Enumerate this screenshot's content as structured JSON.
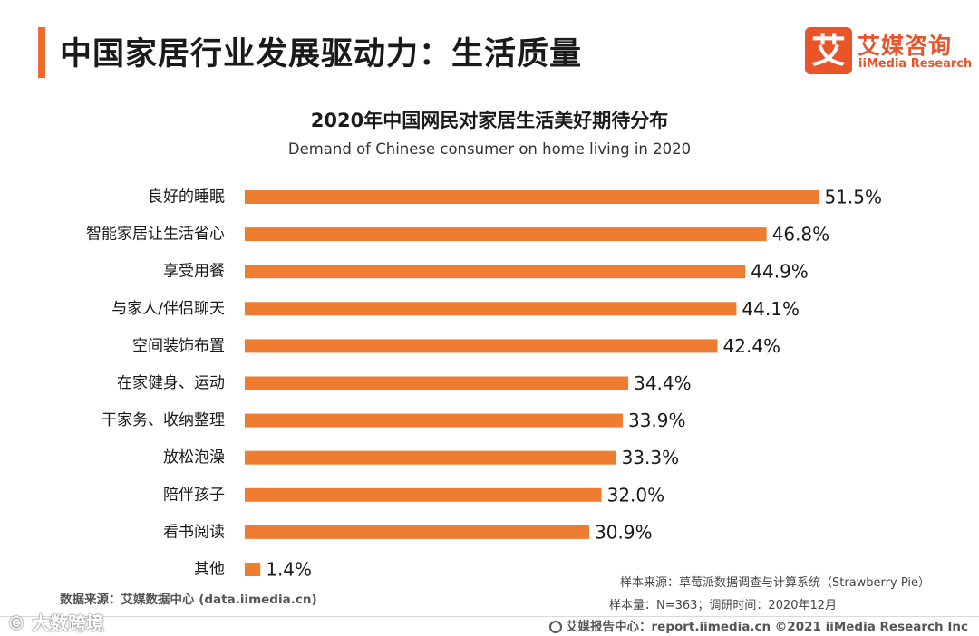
{
  "header": {
    "title": "中国家居行业发展驱动力：生活质量",
    "logo_mark": "艾",
    "logo_cn": "艾媒咨询",
    "logo_en": "iiMedia Research"
  },
  "colors": {
    "bar": "#ee7d31",
    "accent": "#ee6a2c",
    "brand": "#e9542a"
  },
  "chart_data": {
    "type": "bar",
    "orientation": "horizontal",
    "title": "2020年中国网民对家居生活美好期待分布",
    "subtitle": "Demand of Chinese consumer on home living in 2020",
    "categories": [
      "良好的睡眠",
      "智能家居让生活省心",
      "享受用餐",
      "与家人/伴侣聊天",
      "空间装饰布置",
      "在家健身、运动",
      "干家务、收纳整理",
      "放松泡澡",
      "陪伴孩子",
      "看书阅读",
      "其他"
    ],
    "values": [
      51.5,
      46.8,
      44.9,
      44.1,
      42.4,
      34.4,
      33.9,
      33.3,
      32.0,
      30.9,
      1.4
    ],
    "value_labels": [
      "51.5%",
      "46.8%",
      "44.9%",
      "44.1%",
      "42.4%",
      "34.4%",
      "33.9%",
      "33.3%",
      "32.0%",
      "30.9%",
      "1.4%"
    ],
    "unit": "%",
    "xlim": [
      0,
      55
    ],
    "grid": false,
    "legend": "none"
  },
  "footer": {
    "data_source": "数据来源：艾媒数据中心 (data.iimedia.cn)",
    "sample_source": "样本来源：草莓派数据调查与计算系统（Strawberry Pie）",
    "sample_size": "样本量：N=363；调研时间：2020年12月",
    "copyright": "艾媒报告中心：report.iimedia.cn  ©2021  iiMedia Research  Inc",
    "watermark": "© 大数跨境"
  }
}
